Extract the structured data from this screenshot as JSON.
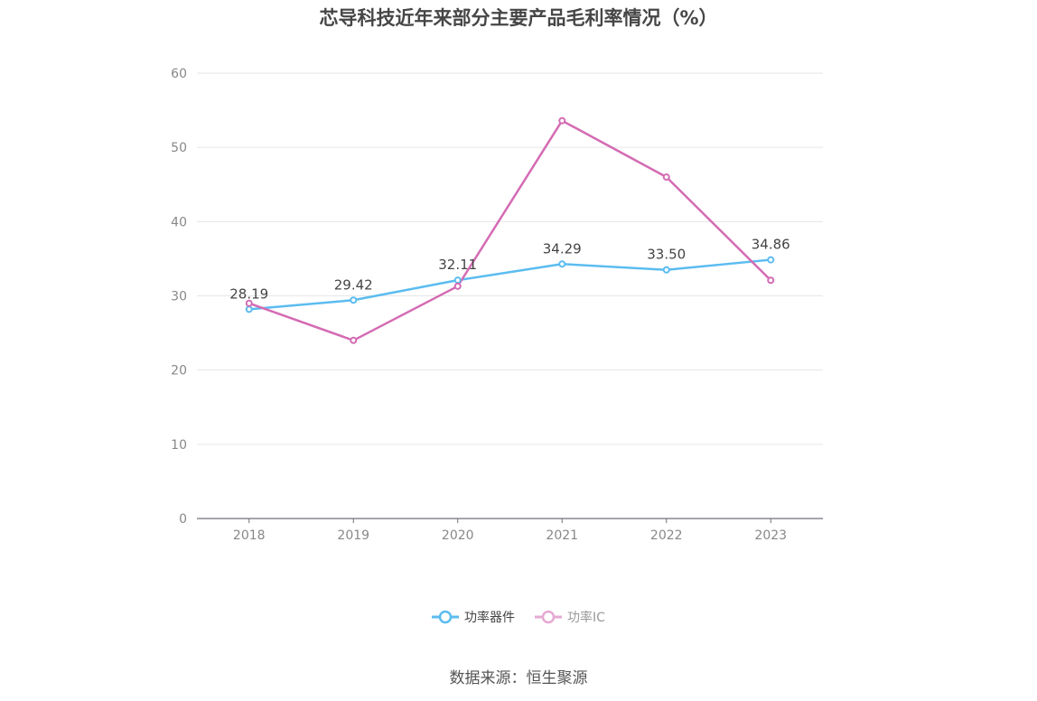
{
  "title": "芯导科技近年来部分主要产品毛利率情况（%）",
  "source": "数据来源：恒生聚源",
  "colors": {
    "series1": "#5bbcf0",
    "series2": "#d46bb3",
    "grid": "#e6e6e6",
    "axis": "#6e7079",
    "tick": "#888888",
    "label": "#444444"
  },
  "chart_data": {
    "type": "line",
    "title": "芯导科技近年来部分主要产品毛利率情况（%）",
    "categories": [
      "2018",
      "2019",
      "2020",
      "2021",
      "2022",
      "2023"
    ],
    "ylim": [
      0,
      60
    ],
    "yticks": [
      "0",
      "10",
      "20",
      "30",
      "40",
      "50",
      "60"
    ],
    "grid": true,
    "legend_position": "bottom-center",
    "series": [
      {
        "name": "功率器件",
        "values": [
          28.19,
          29.42,
          32.11,
          34.29,
          33.5,
          34.86
        ],
        "labels": [
          "28.19",
          "29.42",
          "32.11",
          "34.29",
          "33.50",
          "34.86"
        ],
        "color": "#5bbcf0"
      },
      {
        "name": "功率IC",
        "values": [
          29.0,
          24.0,
          31.3,
          53.6,
          46.0,
          32.1
        ],
        "color": "#d46bb3"
      }
    ]
  }
}
